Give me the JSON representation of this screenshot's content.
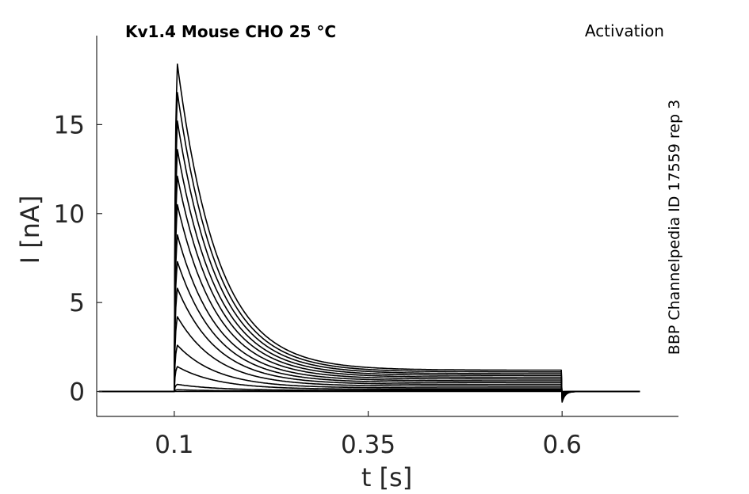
{
  "chart_data": {
    "type": "line",
    "title": "Kv1.4  Mouse  CHO  25 °C",
    "protocol": "Activation",
    "side_label": "BBP Channelpedia ID 17559 rep 3",
    "xlabel": "t [s]",
    "ylabel": "I [nA]",
    "xlim": [
      -0.0,
      0.75
    ],
    "ylim": [
      -1.4,
      20.0
    ],
    "xticks": [
      0.1,
      0.35,
      0.6
    ],
    "xtick_labels": [
      "0.1",
      "0.35",
      "0.6"
    ],
    "yticks": [
      0,
      5,
      10,
      15
    ],
    "ytick_labels": [
      "0",
      "5",
      "10",
      "15"
    ],
    "grid": false,
    "legend": "none",
    "color": "#000000",
    "pulse": {
      "start": 0.1,
      "end": 0.6,
      "t_begin": 0.003,
      "t_end": 0.7
    },
    "peak_time": 0.104,
    "tail_dip": -0.6,
    "series": [
      {
        "peak": 18.4,
        "steady": 1.2
      },
      {
        "peak": 16.8,
        "steady": 1.1
      },
      {
        "peak": 15.2,
        "steady": 1.0
      },
      {
        "peak": 13.6,
        "steady": 0.9
      },
      {
        "peak": 12.1,
        "steady": 0.8
      },
      {
        "peak": 10.5,
        "steady": 0.7
      },
      {
        "peak": 8.8,
        "steady": 0.6
      },
      {
        "peak": 7.3,
        "steady": 0.5
      },
      {
        "peak": 5.8,
        "steady": 0.4
      },
      {
        "peak": 4.2,
        "steady": 0.3
      },
      {
        "peak": 2.6,
        "steady": 0.2
      },
      {
        "peak": 1.4,
        "steady": 0.12
      },
      {
        "peak": 0.4,
        "steady": 0.06
      },
      {
        "peak": 0.1,
        "steady": 0.02
      },
      {
        "peak": 0.0,
        "steady": 0.0
      }
    ]
  }
}
